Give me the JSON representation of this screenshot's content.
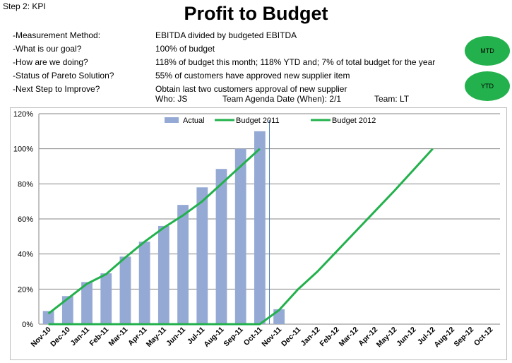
{
  "header": {
    "step": "Step 2: KPI",
    "title": "Profit to Budget"
  },
  "kpi": [
    {
      "label": "-Measurement Method:",
      "value": "EBITDA  divided by budgeted EBITDA"
    },
    {
      "label": "-What is our goal?",
      "value": "100% of budget"
    },
    {
      "label": "-How are we doing?",
      "value": "118% of budget this month; 118% YTD and; 7% of total budget for the year"
    },
    {
      "label": "-Status of Pareto Solution?",
      "value": "55% of customers have approved new supplier item"
    },
    {
      "label": "-Next Step to Improve?",
      "value": "Obtain last two customers approval of new supplier"
    }
  ],
  "who": {
    "who": "Who: JS",
    "date": "Team Agenda Date (When): 2/1",
    "team": "Team: LT"
  },
  "badges": {
    "mtd": "MTD",
    "ytd": "YTD",
    "color": "#22b14c"
  },
  "chart_data": {
    "type": "bar",
    "categories": [
      "Nov-10",
      "Dec-10",
      "Jan-11",
      "Feb-11",
      "Mar-11",
      "Apr-11",
      "May-11",
      "Jun-11",
      "Jul-11",
      "Aug-11",
      "Sep-11",
      "Oct-11",
      "Nov-11",
      "Dec-11",
      "Jan-12",
      "Feb-12",
      "Mar-12",
      "Apr-12",
      "May-12",
      "Jun-12",
      "Jul-12",
      "Aug-12",
      "Sep-12",
      "Oct-12"
    ],
    "series": [
      {
        "name": "Actual",
        "kind": "bar",
        "color": "#95a9d5",
        "values": [
          7.5,
          16,
          24,
          29,
          38.5,
          47,
          56,
          68,
          78,
          88.5,
          100,
          110,
          8.5,
          null,
          null,
          null,
          null,
          null,
          null,
          null,
          null,
          null,
          null,
          null
        ]
      },
      {
        "name": "Budget 2011",
        "kind": "line",
        "color": "#22b14c",
        "values": [
          6,
          14.5,
          23,
          28.5,
          38,
          47,
          55,
          62,
          70,
          80,
          90,
          100,
          null,
          null,
          null,
          null,
          null,
          null,
          null,
          null,
          null,
          null,
          null,
          null
        ]
      },
      {
        "name": "Budget 2012",
        "kind": "line",
        "color": "#22b14c",
        "values": [
          0,
          0,
          0,
          0,
          0,
          0,
          0,
          0,
          0,
          0,
          0,
          0,
          8,
          20,
          30,
          41.5,
          53,
          64.5,
          76,
          88,
          100,
          null,
          null,
          null
        ]
      }
    ],
    "yticks": [
      "0%",
      "20%",
      "40%",
      "60%",
      "80%",
      "100%",
      "120%"
    ],
    "ylim": [
      0,
      120
    ],
    "grid": true,
    "legend": "top-center",
    "divider_after_category": "Oct-11",
    "divider_color": "#4f81bd",
    "grid_color": "#868686"
  }
}
